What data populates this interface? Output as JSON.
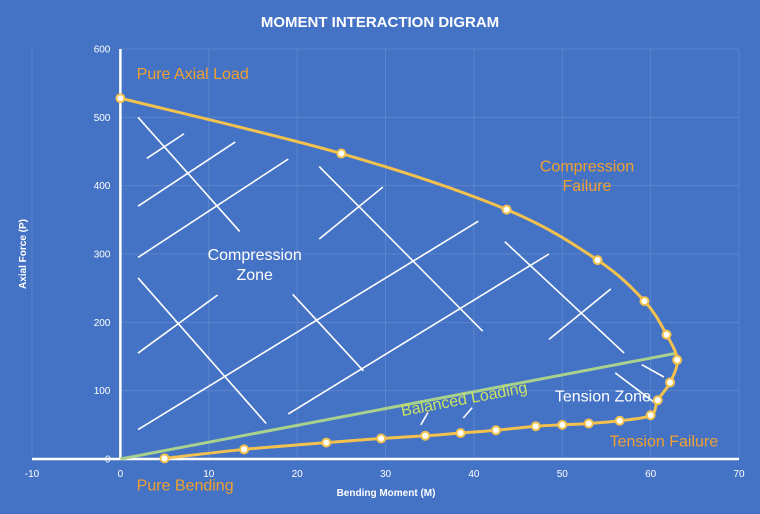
{
  "chart_data": {
    "type": "scatter",
    "title": "MOMENT INTERACTION DIGRAM",
    "xlabel": "Bending Moment (M)",
    "ylabel": "Axial Force (P)",
    "xlim": [
      -10,
      70
    ],
    "ylim": [
      0,
      600
    ],
    "x_ticks": [
      "-10",
      "0",
      "10",
      "20",
      "30",
      "40",
      "50",
      "60",
      "70"
    ],
    "y_ticks": [
      "0",
      "100",
      "200",
      "300",
      "400",
      "500",
      "600"
    ],
    "grid": true,
    "legend": "none",
    "colors": {
      "background": "#4472c4",
      "curve": "#f2c14e",
      "balanced_line": "#a9d18e",
      "region_label": "#f0a030",
      "balanced_label": "#c9e265",
      "zone_text": "#ffffff",
      "hatch": "#ffffff",
      "grid": "#5b84cc"
    },
    "series": [
      {
        "points": [
          [
            0,
            528
          ],
          [
            25,
            447
          ],
          [
            43.7,
            365
          ],
          [
            54,
            291
          ],
          [
            59.3,
            231
          ],
          [
            61.8,
            182
          ],
          [
            63,
            145
          ],
          [
            62.2,
            112
          ],
          [
            60.8,
            86
          ],
          [
            60,
            64
          ],
          [
            56.5,
            56
          ],
          [
            53,
            52
          ],
          [
            50,
            50
          ],
          [
            47,
            48
          ],
          [
            42.5,
            42
          ],
          [
            38.5,
            38
          ],
          [
            34.5,
            34
          ],
          [
            29.5,
            30
          ],
          [
            23.3,
            24
          ],
          [
            14,
            14
          ],
          [
            5,
            1
          ]
        ]
      }
    ],
    "balanced_line": {
      "from": [
        0,
        0
      ],
      "to": [
        63,
        155
      ],
      "label": "Balanced Loading"
    },
    "annotations": [
      {
        "text": "Pure Axial Load",
        "x": 3.2,
        "y": 556,
        "kind": "region"
      },
      {
        "text": "Compression",
        "x": 52.8,
        "y": 421,
        "kind": "region"
      },
      {
        "text": "Failure",
        "x": 52.8,
        "y": 392,
        "kind": "region"
      },
      {
        "text": "Compression",
        "x": 15.2,
        "y": 291,
        "kind": "zone"
      },
      {
        "text": "Zone",
        "x": 15.2,
        "y": 262,
        "kind": "zone"
      },
      {
        "text": "Tension Zone",
        "x": 54.6,
        "y": 84,
        "kind": "zone"
      },
      {
        "text": "Tension Failure",
        "x": 61.5,
        "y": 18,
        "kind": "region"
      },
      {
        "text": "Pure Bending",
        "x": 3.2,
        "y": -46,
        "kind": "region"
      }
    ],
    "hatch_lines": [
      [
        [
          2,
          500
        ],
        [
          13.5,
          333
        ]
      ],
      [
        [
          3,
          440
        ],
        [
          7.2,
          476
        ]
      ],
      [
        [
          2,
          370
        ],
        [
          13,
          464
        ]
      ],
      [
        [
          2,
          295
        ],
        [
          19,
          439
        ]
      ],
      [
        [
          2,
          265
        ],
        [
          16.5,
          52
        ]
      ],
      [
        [
          2,
          155
        ],
        [
          11,
          240
        ]
      ],
      [
        [
          2,
          43
        ],
        [
          40.5,
          348
        ]
      ],
      [
        [
          22.5,
          428
        ],
        [
          41,
          187
        ]
      ],
      [
        [
          22.5,
          322
        ],
        [
          29.7,
          398
        ]
      ],
      [
        [
          19.5,
          241
        ],
        [
          27.5,
          129
        ]
      ],
      [
        [
          19,
          66
        ],
        [
          48.5,
          300
        ]
      ],
      [
        [
          43.5,
          318
        ],
        [
          57,
          155
        ]
      ],
      [
        [
          48.5,
          175
        ],
        [
          55.5,
          249
        ]
      ],
      [
        [
          56,
          126
        ],
        [
          60.5,
          82
        ]
      ],
      [
        [
          59,
          138
        ],
        [
          61.5,
          120
        ]
      ],
      [
        [
          34,
          50
        ],
        [
          34.8,
          68
        ]
      ],
      [
        [
          38.8,
          60
        ],
        [
          39.8,
          75
        ]
      ]
    ]
  }
}
